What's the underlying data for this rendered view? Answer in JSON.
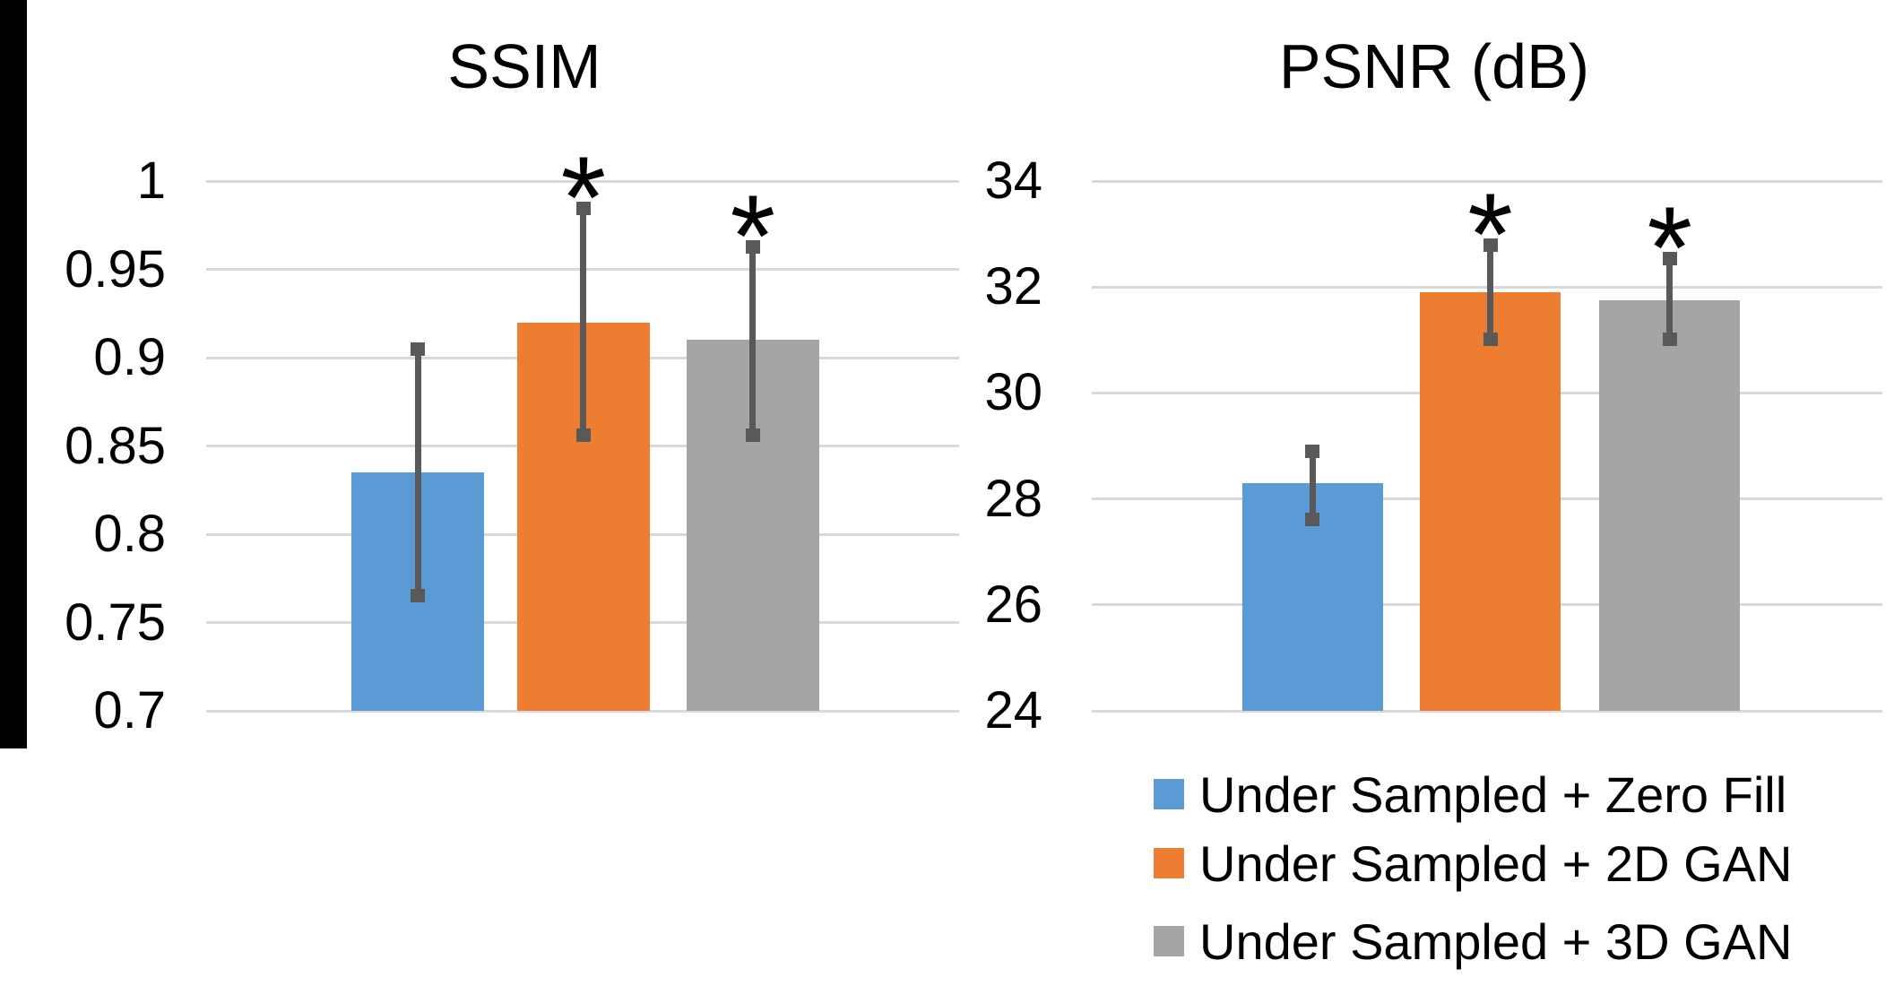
{
  "page": {
    "background": "#ffffff",
    "left_strip_color": "#000000"
  },
  "colors": {
    "series": [
      "#5B9BD5",
      "#ED7D31",
      "#A5A5A5"
    ],
    "error_bar": "#595959",
    "gridline": "#D9D9D9",
    "text": "#000000"
  },
  "legend": {
    "items": [
      {
        "label": "Under Sampled + Zero Fill",
        "color": "#5B9BD5"
      },
      {
        "label": "Under Sampled + 2D GAN",
        "color": "#ED7D31"
      },
      {
        "label": "Under Sampled + 3D GAN",
        "color": "#A5A5A5"
      }
    ]
  },
  "chart_data": [
    {
      "type": "bar",
      "title": "SSIM",
      "xlabel": "",
      "ylabel": "",
      "ylim": [
        0.7,
        1.0
      ],
      "grid": true,
      "ytick_labels": [
        "1",
        "0.95",
        "0.9",
        "0.85",
        "0.8",
        "0.75",
        "0.7"
      ],
      "categories": [
        "Under Sampled + Zero Fill",
        "Under Sampled + 2D GAN",
        "Under Sampled + 3D GAN"
      ],
      "values": [
        0.835,
        0.92,
        0.91
      ],
      "error_low": [
        0.765,
        0.856,
        0.856
      ],
      "error_high": [
        0.905,
        0.985,
        0.963
      ],
      "significance": [
        "",
        "*",
        "*"
      ]
    },
    {
      "type": "bar",
      "title": "PSNR (dB)",
      "xlabel": "",
      "ylabel": "",
      "ylim": [
        24,
        34
      ],
      "grid": true,
      "ytick_labels": [
        "34",
        "32",
        "30",
        "28",
        "26",
        "24"
      ],
      "categories": [
        "Under Sampled + Zero Fill",
        "Under Sampled + 2D GAN",
        "Under Sampled + 3D GAN"
      ],
      "values": [
        28.3,
        31.9,
        31.75
      ],
      "error_low": [
        27.6,
        31.0,
        31.0
      ],
      "error_high": [
        28.9,
        32.8,
        32.55
      ],
      "significance": [
        "",
        "*",
        "*"
      ]
    }
  ]
}
